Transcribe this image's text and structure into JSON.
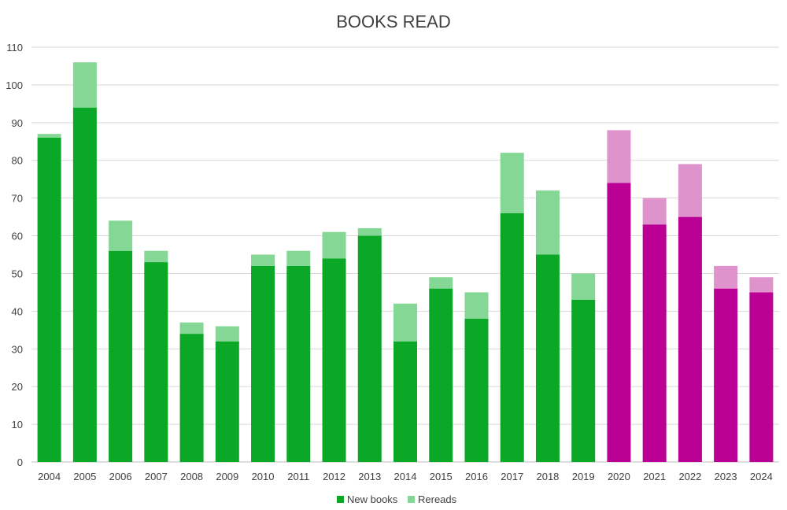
{
  "chart_data": {
    "type": "bar",
    "stacked": true,
    "title": "BOOKS READ",
    "xlabel": "",
    "ylabel": "",
    "ylim": [
      0,
      110
    ],
    "ytick_step": 10,
    "grid": true,
    "legend_position": "bottom",
    "categories": [
      "2004",
      "2005",
      "2006",
      "2007",
      "2008",
      "2009",
      "2010",
      "2011",
      "2012",
      "2013",
      "2014",
      "2015",
      "2016",
      "2017",
      "2018",
      "2019",
      "2020",
      "2021",
      "2022",
      "2023",
      "2024"
    ],
    "series": [
      {
        "name": "New books",
        "values": [
          86,
          94,
          56,
          53,
          34,
          32,
          52,
          52,
          54,
          60,
          32,
          46,
          38,
          66,
          55,
          43,
          74,
          63,
          65,
          46,
          45
        ]
      },
      {
        "name": "Rereads",
        "values": [
          1,
          12,
          8,
          3,
          3,
          4,
          3,
          4,
          7,
          2,
          10,
          3,
          7,
          16,
          17,
          7,
          14,
          7,
          14,
          6,
          4
        ]
      }
    ],
    "colors": {
      "new_books": "#0aa826",
      "rereads": "#85d795",
      "new_books_highlight": "#bb0096",
      "rereads_highlight": "#df93cd"
    },
    "highlight_from_category": "2020"
  }
}
